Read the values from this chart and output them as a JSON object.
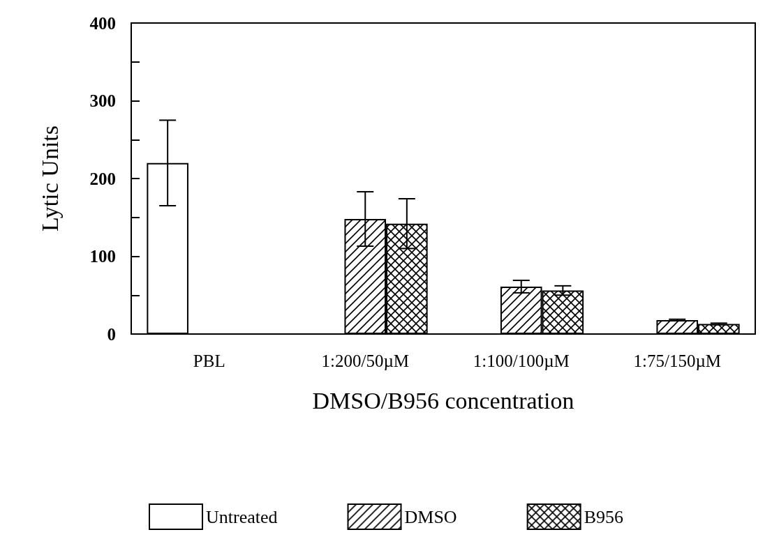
{
  "chart_data": {
    "type": "bar",
    "xlabel": "DMSO/B956 concentration",
    "ylabel": "Lytic Units",
    "categories": [
      "PBL",
      "1:200/50µM",
      "1:100/100µM",
      "1:75/150µM"
    ],
    "series": [
      {
        "name": "Untreated",
        "color": "#ffffff",
        "values": [
          220,
          null,
          null,
          null
        ],
        "errors": [
          55,
          null,
          null,
          null
        ]
      },
      {
        "name": "DMSO",
        "color": "#000000",
        "values": [
          null,
          148,
          61,
          18
        ],
        "errors": [
          null,
          35,
          8,
          1
        ]
      },
      {
        "name": "B956",
        "color": "#000000",
        "values": [
          null,
          142,
          56,
          13
        ],
        "errors": [
          null,
          32,
          6,
          1
        ]
      }
    ],
    "ylim": [
      0,
      400
    ],
    "yticks": [
      0,
      100,
      200,
      300,
      400
    ],
    "grid": false,
    "legend": "bottom"
  }
}
